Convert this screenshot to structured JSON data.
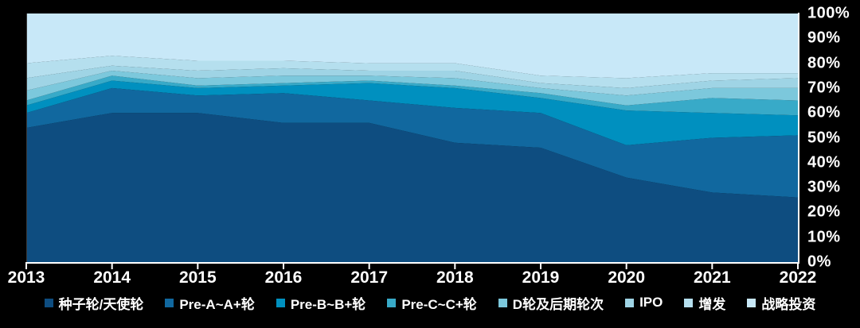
{
  "chart_data": {
    "type": "area",
    "variant": "stacked-100-percent",
    "title": "",
    "xlabel": "",
    "ylabel": "",
    "x_labels": [
      "2013",
      "2014",
      "2015",
      "2016",
      "2017",
      "2018",
      "2019",
      "2020",
      "2021",
      "2022"
    ],
    "y_tick_labels": [
      "0%",
      "10%",
      "20%",
      "30%",
      "40%",
      "50%",
      "60%",
      "70%",
      "80%",
      "90%",
      "100%"
    ],
    "ylim": [
      0,
      100
    ],
    "units": "percent",
    "grid": false,
    "y_axis_side": "right",
    "legend_position": "bottom",
    "axis_color": "#ffffff",
    "label_color": "#ffffff",
    "background_color": "#000000",
    "series": [
      {
        "name": "种子轮/天使轮",
        "color": "#0e4d80",
        "values": [
          54,
          60,
          60,
          56,
          56,
          48,
          46,
          34,
          28,
          26
        ]
      },
      {
        "name": "Pre-A~A+轮",
        "color": "#11689f",
        "values": [
          6,
          10,
          7,
          12,
          9,
          14,
          14,
          13,
          22,
          25
        ]
      },
      {
        "name": "Pre-B~B+轮",
        "color": "#0090bf",
        "values": [
          3,
          3,
          3,
          3,
          7,
          8,
          6,
          14,
          10,
          8
        ]
      },
      {
        "name": "Pre-C~C+轮",
        "color": "#38aac8",
        "values": [
          2,
          2,
          1,
          1,
          1,
          1,
          2,
          2,
          6,
          6
        ]
      },
      {
        "name": "D轮及后期轮次",
        "color": "#7cc8dc",
        "values": [
          4,
          2,
          3,
          3,
          2,
          3,
          2,
          4,
          4,
          5
        ]
      },
      {
        "name": "IPO",
        "color": "#9fd4e5",
        "values": [
          5,
          2,
          3,
          3,
          2,
          3,
          2,
          3,
          3,
          4
        ]
      },
      {
        "name": "增发",
        "color": "#b5dfee",
        "values": [
          6,
          4,
          4,
          3,
          3,
          3,
          3,
          4,
          3,
          2
        ]
      },
      {
        "name": "战略投资",
        "color": "#c8e8f8",
        "values": [
          20,
          17,
          19,
          19,
          20,
          20,
          25,
          26,
          24,
          24
        ]
      }
    ]
  }
}
